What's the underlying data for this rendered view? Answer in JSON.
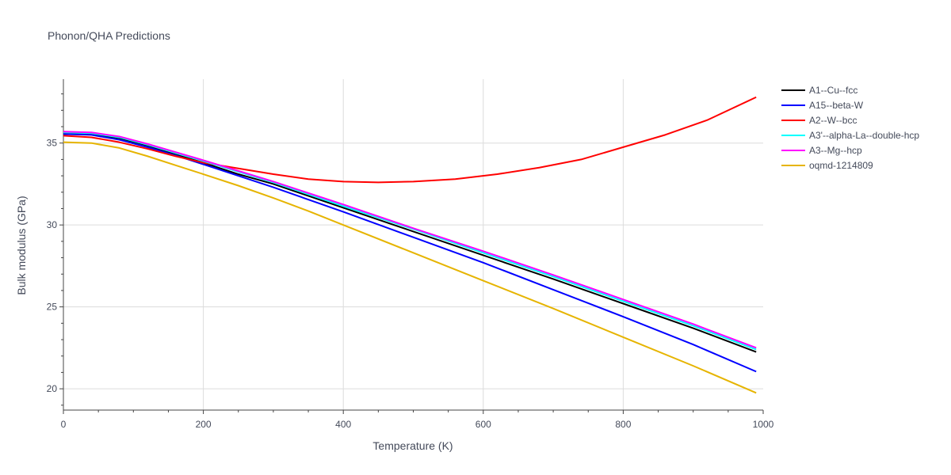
{
  "chart_data": {
    "type": "line",
    "title": "Phonon/QHA Predictions",
    "xlabel": "Temperature (K)",
    "ylabel": "Bulk modulus (GPa)",
    "xlim": [
      0,
      1000
    ],
    "ylim": [
      18.7,
      38.9
    ],
    "xticks": [
      0,
      200,
      400,
      600,
      800,
      1000
    ],
    "yticks": [
      20,
      25,
      30,
      35
    ],
    "grid": true,
    "legend_position": "right",
    "series": [
      {
        "name": "A1--Cu--fcc",
        "color": "#000000",
        "x": [
          0,
          40,
          80,
          120,
          160,
          200,
          250,
          300,
          400,
          500,
          600,
          700,
          800,
          900,
          990
        ],
        "y": [
          35.6,
          35.55,
          35.3,
          34.85,
          34.3,
          33.8,
          33.1,
          32.5,
          31.05,
          29.6,
          28.15,
          26.7,
          25.2,
          23.7,
          22.25
        ]
      },
      {
        "name": "A15--beta-W",
        "color": "#0000ff",
        "x": [
          0,
          40,
          80,
          120,
          160,
          200,
          250,
          300,
          400,
          500,
          600,
          700,
          800,
          900,
          990
        ],
        "y": [
          35.55,
          35.5,
          35.2,
          34.75,
          34.25,
          33.7,
          33.0,
          32.3,
          30.8,
          29.25,
          27.7,
          26.05,
          24.4,
          22.7,
          21.05
        ]
      },
      {
        "name": "A2--W--bcc",
        "color": "#ff0000",
        "x": [
          0,
          40,
          80,
          120,
          160,
          200,
          250,
          300,
          350,
          400,
          450,
          500,
          560,
          620,
          680,
          740,
          800,
          860,
          920,
          990
        ],
        "y": [
          35.45,
          35.35,
          35.05,
          34.65,
          34.2,
          33.8,
          33.45,
          33.1,
          32.8,
          32.65,
          32.6,
          32.65,
          32.8,
          33.1,
          33.5,
          34.0,
          34.75,
          35.5,
          36.4,
          37.8
        ]
      },
      {
        "name": "A3'--alpha-La--double-hcp",
        "color": "#00ffff",
        "x": [
          0,
          40,
          80,
          120,
          160,
          200,
          250,
          300,
          400,
          500,
          600,
          700,
          800,
          900,
          990
        ],
        "y": [
          35.65,
          35.6,
          35.35,
          34.9,
          34.4,
          33.9,
          33.25,
          32.6,
          31.15,
          29.75,
          28.3,
          26.85,
          25.35,
          23.85,
          22.4
        ]
      },
      {
        "name": "A3--Mg--hcp",
        "color": "#ff00ff",
        "x": [
          0,
          40,
          80,
          120,
          160,
          200,
          250,
          300,
          400,
          500,
          600,
          700,
          800,
          900,
          990
        ],
        "y": [
          35.7,
          35.65,
          35.4,
          34.95,
          34.45,
          33.95,
          33.3,
          32.65,
          31.25,
          29.8,
          28.4,
          26.95,
          25.45,
          23.95,
          22.5
        ]
      },
      {
        "name": "oqmd-1214809",
        "color": "#e6b400",
        "x": [
          0,
          40,
          80,
          120,
          160,
          200,
          250,
          300,
          350,
          400,
          500,
          600,
          700,
          800,
          900,
          990
        ],
        "y": [
          35.05,
          35.0,
          34.7,
          34.2,
          33.65,
          33.1,
          32.4,
          31.65,
          30.85,
          30.0,
          28.3,
          26.6,
          24.9,
          23.15,
          21.4,
          19.75
        ]
      }
    ]
  }
}
